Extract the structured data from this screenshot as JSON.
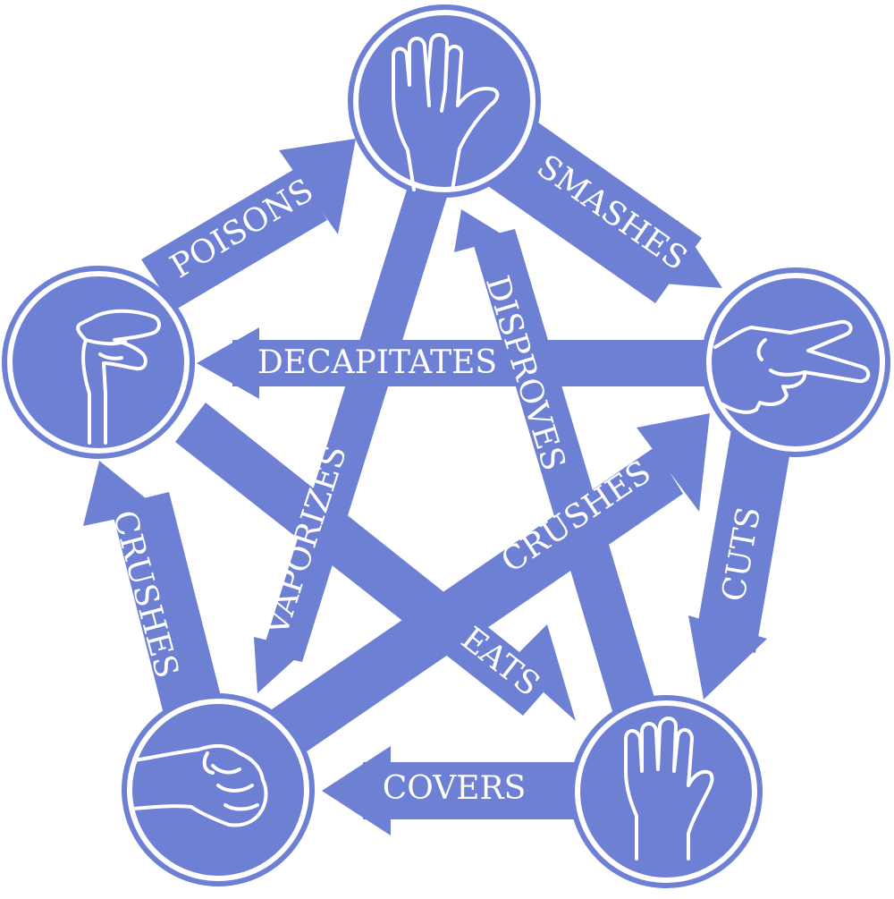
{
  "colors": {
    "shape": "#6e80d4",
    "outline": "#ffffff",
    "background": "#ffffff"
  },
  "nodes": [
    {
      "id": "spock",
      "icon": "spock-hand-icon"
    },
    {
      "id": "scissors",
      "icon": "scissors-hand-icon"
    },
    {
      "id": "paper",
      "icon": "paper-hand-icon"
    },
    {
      "id": "rock",
      "icon": "rock-fist-icon"
    },
    {
      "id": "lizard",
      "icon": "lizard-hand-icon"
    }
  ],
  "edges": [
    {
      "from": "spock",
      "to": "scissors",
      "label": "SMASHES"
    },
    {
      "from": "scissors",
      "to": "paper",
      "label": "CUTS"
    },
    {
      "from": "paper",
      "to": "rock",
      "label": "COVERS"
    },
    {
      "from": "rock",
      "to": "lizard",
      "label": "CRUSHES"
    },
    {
      "from": "lizard",
      "to": "spock",
      "label": "POISONS"
    },
    {
      "from": "scissors",
      "to": "lizard",
      "label": "DECAPITATES"
    },
    {
      "from": "spock",
      "to": "rock",
      "label": "VAPORIZES"
    },
    {
      "from": "paper",
      "to": "spock",
      "label": "DISPROVES"
    },
    {
      "from": "rock",
      "to": "scissors",
      "label": "CRUSHES"
    },
    {
      "from": "lizard",
      "to": "paper",
      "label": "EATS"
    }
  ]
}
